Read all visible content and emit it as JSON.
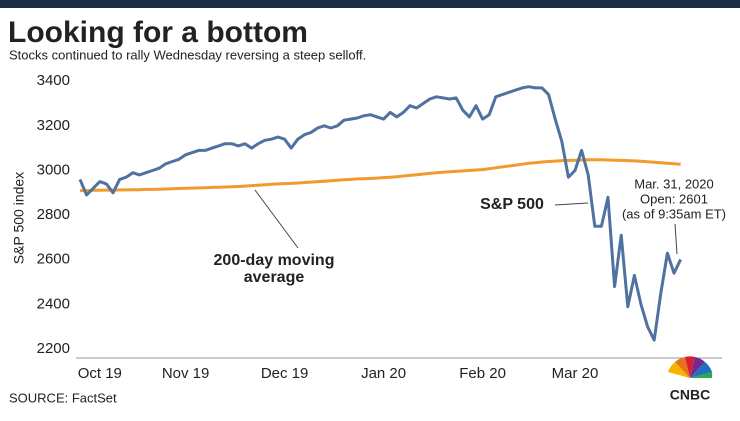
{
  "chart_data": {
    "type": "line",
    "title": "Looking for a bottom",
    "subtitle": "Stocks continued to rally Wednesday reversing a steep selloff.",
    "y_label": "S&P 500 index",
    "source": "SOURCE: FactSet",
    "logo": "CNBC",
    "categories": [
      null,
      null,
      null,
      "Oct 19",
      null,
      null,
      null,
      null,
      null,
      null,
      null,
      null,
      null,
      null,
      null,
      null,
      "Nov 19",
      null,
      null,
      null,
      null,
      null,
      null,
      null,
      null,
      null,
      null,
      null,
      null,
      null,
      null,
      "Dec 19",
      null,
      null,
      null,
      null,
      null,
      null,
      null,
      null,
      null,
      null,
      null,
      null,
      null,
      null,
      "Jan 20",
      null,
      null,
      null,
      null,
      null,
      null,
      null,
      null,
      null,
      null,
      null,
      null,
      null,
      null,
      "Feb 20",
      null,
      null,
      null,
      null,
      null,
      null,
      null,
      null,
      null,
      null,
      null,
      null,
      null,
      "Mar 20",
      null,
      null,
      null,
      null,
      null,
      null,
      null,
      null,
      null,
      null,
      null,
      null,
      null,
      null,
      null,
      null
    ],
    "series": [
      {
        "name": "S&P 500",
        "color": "#4f72a0",
        "values": [
          2960,
          2890,
          2920,
          2950,
          2940,
          2900,
          2960,
          2970,
          2990,
          2980,
          2990,
          3000,
          3010,
          3030,
          3040,
          3050,
          3070,
          3080,
          3090,
          3090,
          3100,
          3110,
          3120,
          3120,
          3110,
          3120,
          3100,
          3120,
          3135,
          3140,
          3150,
          3140,
          3100,
          3140,
          3160,
          3170,
          3190,
          3200,
          3190,
          3200,
          3225,
          3230,
          3235,
          3245,
          3250,
          3240,
          3230,
          3260,
          3240,
          3260,
          3290,
          3280,
          3300,
          3320,
          3330,
          3325,
          3320,
          3325,
          3270,
          3240,
          3290,
          3230,
          3250,
          3330,
          3340,
          3350,
          3360,
          3370,
          3375,
          3370,
          3370,
          3340,
          3230,
          3130,
          2970,
          3000,
          3090,
          2980,
          2750,
          2750,
          2880,
          2480,
          2710,
          2390,
          2530,
          2400,
          2300,
          2240,
          2450,
          2630,
          2540,
          2601
        ]
      },
      {
        "name": "200-day moving average",
        "color": "#f29a2e",
        "values": [
          2910,
          2910,
          2911,
          2911,
          2912,
          2912,
          2913,
          2913,
          2914,
          2914,
          2915,
          2915,
          2916,
          2917,
          2918,
          2919,
          2920,
          2921,
          2922,
          2923,
          2924,
          2925,
          2926,
          2927,
          2928,
          2930,
          2932,
          2934,
          2936,
          2938,
          2940,
          2941,
          2942,
          2944,
          2946,
          2948,
          2950,
          2952,
          2954,
          2956,
          2958,
          2960,
          2962,
          2963,
          2964,
          2966,
          2968,
          2970,
          2972,
          2975,
          2978,
          2981,
          2984,
          2987,
          2990,
          2992,
          2994,
          2996,
          2998,
          3000,
          3002,
          3004,
          3008,
          3012,
          3016,
          3020,
          3024,
          3028,
          3032,
          3035,
          3038,
          3040,
          3042,
          3044,
          3045,
          3046,
          3047,
          3048,
          3048,
          3048,
          3047,
          3046,
          3045,
          3044,
          3043,
          3041,
          3039,
          3037,
          3035,
          3032,
          3030,
          3028
        ]
      }
    ],
    "annotations": [
      {
        "lines": [
          "S&P 500"
        ]
      },
      {
        "lines": [
          "200-day moving",
          "average"
        ]
      },
      {
        "lines": [
          "Mar. 31, 2020",
          "Open: 2601",
          "(as of 9:35am ET)"
        ]
      }
    ],
    "ylim": [
      2160,
      3450
    ],
    "yticks": [
      2200,
      2400,
      2600,
      2800,
      3000,
      3200,
      3400
    ],
    "grid": false
  }
}
